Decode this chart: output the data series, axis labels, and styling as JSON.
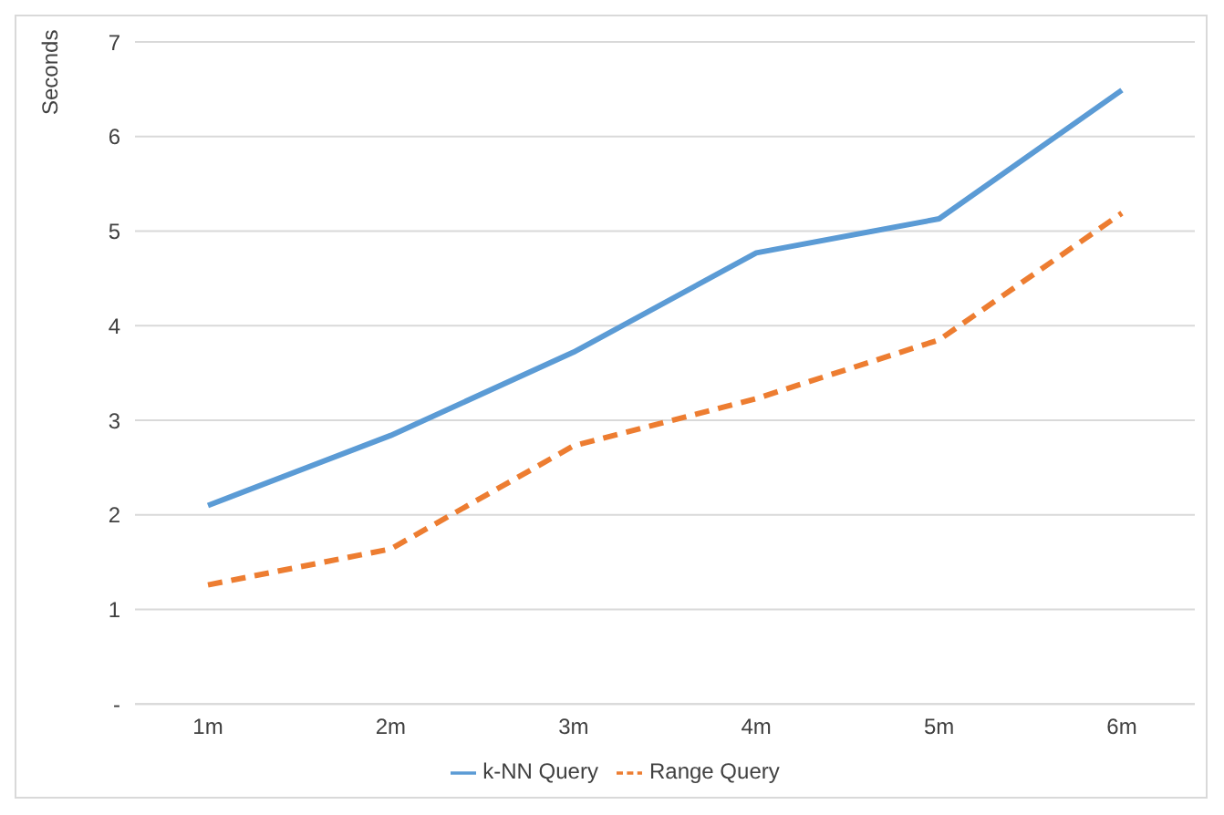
{
  "chart_data": {
    "type": "line",
    "ylabel": "Seconds",
    "categories": [
      "1m",
      "2m",
      "3m",
      "4m",
      "5m",
      "6m"
    ],
    "series": [
      {
        "name": "k-NN Query",
        "color": "#5b9bd5",
        "line_style": "solid",
        "values": [
          2.1,
          2.84,
          3.72,
          4.77,
          5.13,
          6.49
        ]
      },
      {
        "name": "Range Query",
        "color": "#ed7d31",
        "line_style": "dashed",
        "values": [
          1.26,
          1.64,
          2.73,
          3.23,
          3.85,
          5.19
        ]
      }
    ],
    "ylim": [
      0,
      7
    ],
    "yticks": [
      {
        "value": 0,
        "label": "-"
      },
      1,
      2,
      3,
      4,
      5,
      6,
      7
    ],
    "grid": "y",
    "legend": "bottom"
  }
}
